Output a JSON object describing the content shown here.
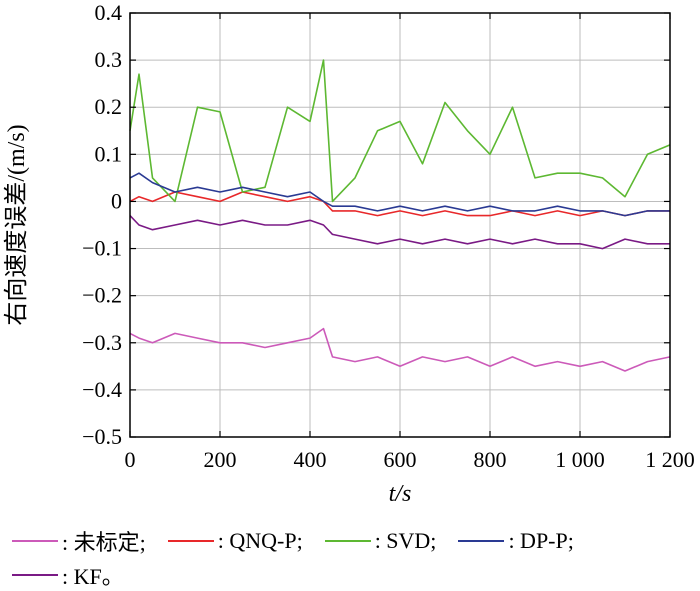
{
  "chart_data": {
    "type": "line",
    "title": "",
    "xlabel": "t/s",
    "ylabel": "右向速度误差/(m/s)",
    "xlim": [
      0,
      1200
    ],
    "ylim": [
      -0.5,
      0.4
    ],
    "grid": true,
    "x_ticks": [
      0,
      200,
      400,
      600,
      800,
      1000,
      1200
    ],
    "x_tick_labels": [
      "0",
      "200",
      "400",
      "600",
      "800",
      "1 000",
      "1 200"
    ],
    "y_ticks": [
      0.4,
      0.3,
      0.2,
      0.1,
      0,
      -0.1,
      -0.2,
      -0.3,
      -0.4,
      -0.5
    ],
    "y_tick_labels": [
      "0.4",
      "0.3",
      "0.2",
      "0.1",
      "0",
      "−0.1",
      "−0.2",
      "−0.3",
      "−0.4",
      "−0.5"
    ],
    "legend_position": "bottom",
    "x": [
      0,
      20,
      50,
      100,
      150,
      200,
      250,
      300,
      350,
      400,
      430,
      450,
      500,
      550,
      600,
      650,
      700,
      750,
      800,
      850,
      900,
      950,
      1000,
      1050,
      1100,
      1150,
      1200
    ],
    "series": [
      {
        "name": "未标定",
        "color": "#cc5ab9",
        "legend": ": 未标定;",
        "values": [
          -0.28,
          -0.29,
          -0.3,
          -0.28,
          -0.29,
          -0.3,
          -0.3,
          -0.31,
          -0.3,
          -0.29,
          -0.27,
          -0.33,
          -0.34,
          -0.33,
          -0.35,
          -0.33,
          -0.34,
          -0.33,
          -0.35,
          -0.33,
          -0.35,
          -0.34,
          -0.35,
          -0.34,
          -0.36,
          -0.34,
          -0.33
        ]
      },
      {
        "name": "QNQ-P",
        "color": "#e8282a",
        "legend": ": QNQ-P;",
        "values": [
          0.0,
          0.01,
          0.0,
          0.02,
          0.01,
          0.0,
          0.02,
          0.01,
          0.0,
          0.01,
          0.0,
          -0.02,
          -0.02,
          -0.03,
          -0.02,
          -0.03,
          -0.02,
          -0.03,
          -0.03,
          -0.02,
          -0.03,
          -0.02,
          -0.03,
          -0.02,
          -0.03,
          -0.02,
          -0.02
        ]
      },
      {
        "name": "SVD",
        "color": "#5db832",
        "legend": ": SVD;",
        "values": [
          0.15,
          0.27,
          0.05,
          0.0,
          0.2,
          0.19,
          0.02,
          0.03,
          0.2,
          0.17,
          0.3,
          0.0,
          0.05,
          0.15,
          0.17,
          0.08,
          0.21,
          0.15,
          0.1,
          0.2,
          0.05,
          0.06,
          0.06,
          0.05,
          0.01,
          0.1,
          0.12
        ]
      },
      {
        "name": "DP-P",
        "color": "#2a3a93",
        "legend": ": DP-P;",
        "values": [
          0.05,
          0.06,
          0.04,
          0.02,
          0.03,
          0.02,
          0.03,
          0.02,
          0.01,
          0.02,
          0.0,
          -0.01,
          -0.01,
          -0.02,
          -0.01,
          -0.02,
          -0.01,
          -0.02,
          -0.01,
          -0.02,
          -0.02,
          -0.01,
          -0.02,
          -0.02,
          -0.03,
          -0.02,
          -0.02
        ]
      },
      {
        "name": "KF",
        "color": "#7a1a85",
        "legend": ": KF。",
        "values": [
          -0.03,
          -0.05,
          -0.06,
          -0.05,
          -0.04,
          -0.05,
          -0.04,
          -0.05,
          -0.05,
          -0.04,
          -0.05,
          -0.07,
          -0.08,
          -0.09,
          -0.08,
          -0.09,
          -0.08,
          -0.09,
          -0.08,
          -0.09,
          -0.08,
          -0.09,
          -0.09,
          -0.1,
          -0.08,
          -0.09,
          -0.09
        ]
      }
    ]
  }
}
